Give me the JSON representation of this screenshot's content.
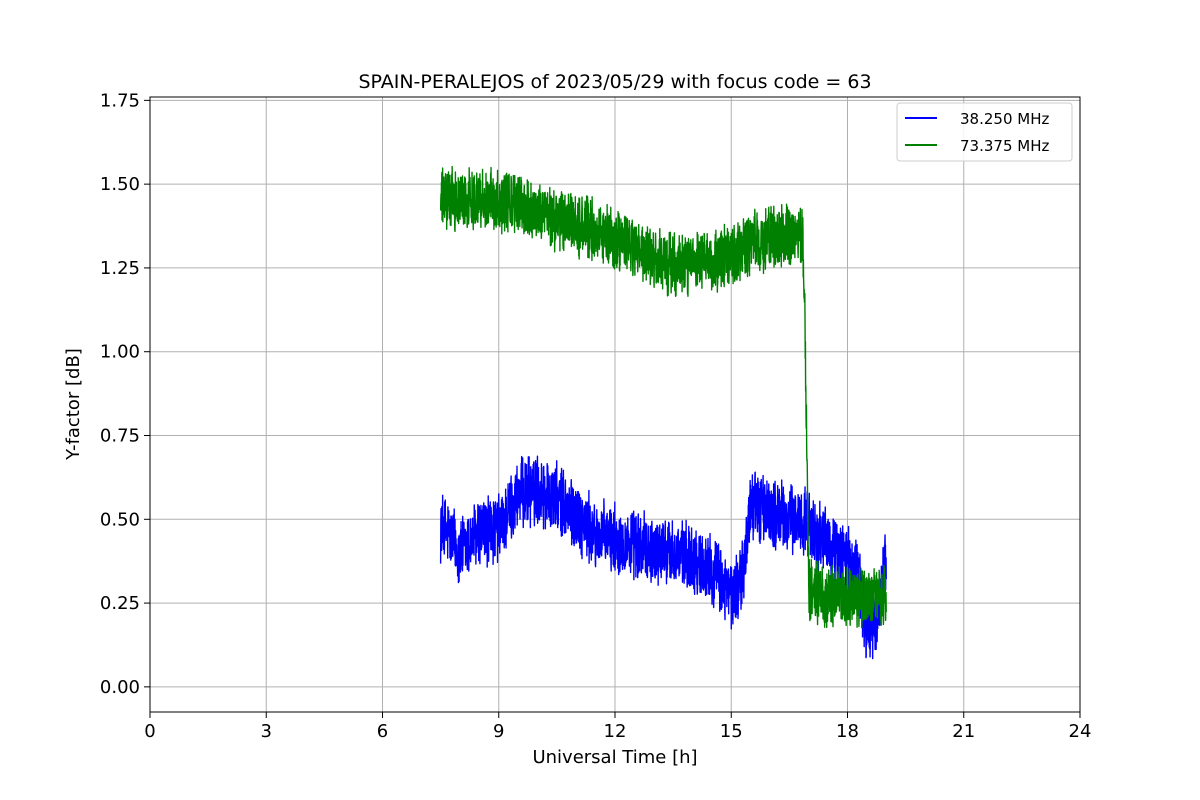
{
  "chart_data": {
    "type": "line",
    "title": "SPAIN-PERALEJOS of 2023/05/29 with focus code = 63",
    "xlabel": "Universal Time [h]",
    "ylabel": "Y-factor [dB]",
    "xlim": [
      0,
      24
    ],
    "ylim": [
      -0.075,
      1.76
    ],
    "xticks": [
      0,
      3,
      6,
      9,
      12,
      15,
      18,
      21,
      24
    ],
    "xtick_labels": [
      "0",
      "3",
      "6",
      "9",
      "12",
      "15",
      "18",
      "21",
      "24"
    ],
    "yticks": [
      0.0,
      0.25,
      0.5,
      0.75,
      1.0,
      1.25,
      1.5,
      1.75
    ],
    "ytick_labels": [
      "0.00",
      "0.25",
      "0.50",
      "0.75",
      "1.00",
      "1.25",
      "1.50",
      "1.75"
    ],
    "grid": true,
    "legend_position": "top-right",
    "series": [
      {
        "name": "38.250 MHz",
        "color": "#0000ff",
        "noise": 0.09,
        "x": [
          7.5,
          7.75,
          8.0,
          8.5,
          9.0,
          9.5,
          10.0,
          10.5,
          11.0,
          11.5,
          12.0,
          12.5,
          13.0,
          13.5,
          14.0,
          14.5,
          15.0,
          15.3,
          15.5,
          16.0,
          16.5,
          16.9,
          17.2,
          17.5,
          18.0,
          18.3,
          18.5,
          18.75,
          19.0
        ],
        "y": [
          0.48,
          0.45,
          0.4,
          0.46,
          0.47,
          0.57,
          0.59,
          0.56,
          0.51,
          0.45,
          0.44,
          0.42,
          0.41,
          0.4,
          0.38,
          0.35,
          0.27,
          0.33,
          0.55,
          0.52,
          0.5,
          0.5,
          0.45,
          0.42,
          0.38,
          0.32,
          0.17,
          0.2,
          0.38
        ]
      },
      {
        "name": "73.375 MHz",
        "color": "#008000",
        "noise": 0.08,
        "x": [
          7.5,
          8.0,
          8.5,
          9.0,
          9.5,
          10.0,
          10.5,
          11.0,
          11.5,
          12.0,
          12.5,
          13.0,
          13.5,
          14.0,
          14.5,
          15.0,
          15.5,
          16.0,
          16.5,
          16.85,
          16.9,
          17.0,
          17.5,
          18.0,
          18.5,
          19.0
        ],
        "y": [
          1.45,
          1.45,
          1.46,
          1.45,
          1.44,
          1.42,
          1.39,
          1.38,
          1.36,
          1.33,
          1.31,
          1.27,
          1.26,
          1.26,
          1.26,
          1.29,
          1.32,
          1.34,
          1.35,
          1.33,
          1.1,
          0.3,
          0.27,
          0.26,
          0.27,
          0.27
        ]
      }
    ]
  }
}
